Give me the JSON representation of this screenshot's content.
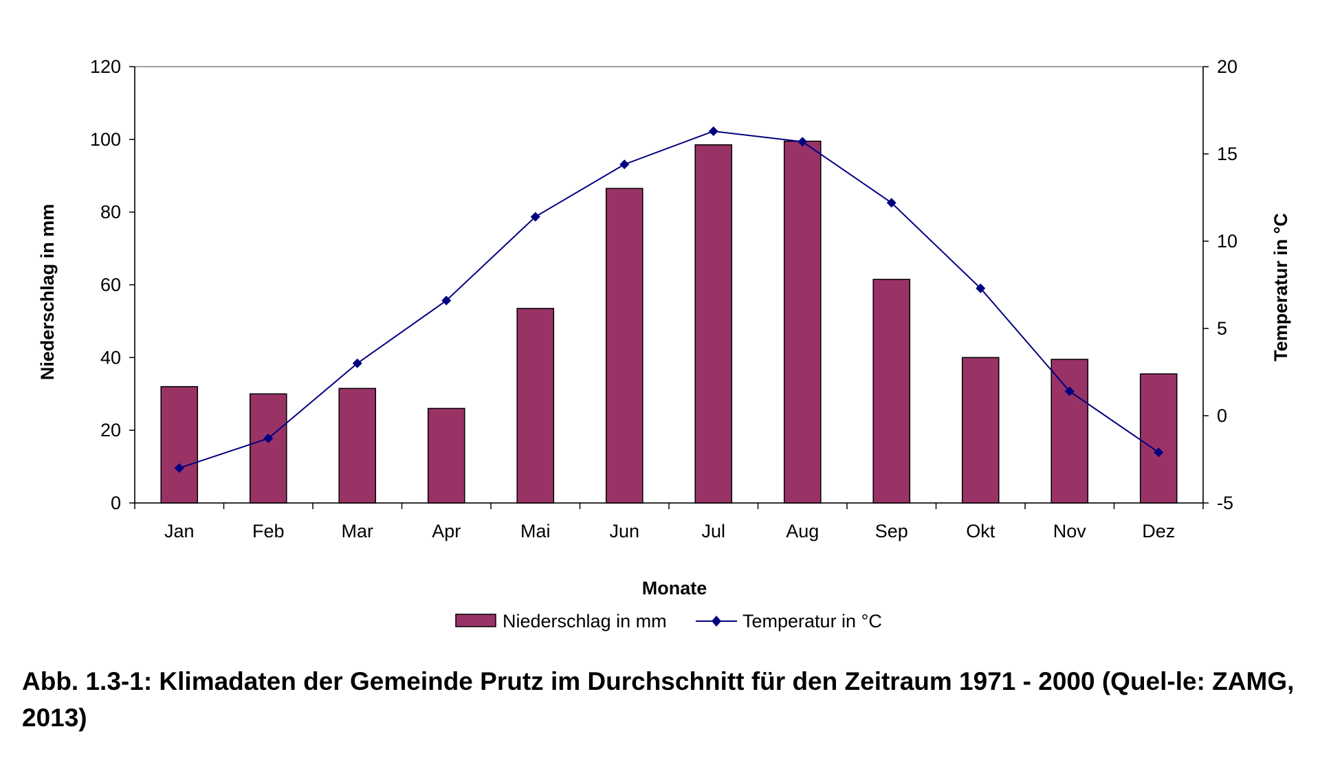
{
  "chart_data": {
    "type": "bar",
    "categories": [
      "Jan",
      "Feb",
      "Mar",
      "Apr",
      "Mai",
      "Jun",
      "Jul",
      "Aug",
      "Sep",
      "Okt",
      "Nov",
      "Dez"
    ],
    "series": [
      {
        "name": "Niederschlag in mm",
        "type": "bar",
        "axis": "left",
        "color": "#993366",
        "values": [
          32,
          30,
          31.5,
          26,
          53.5,
          86.5,
          98.5,
          99.5,
          61.5,
          40,
          39.5,
          35.5
        ]
      },
      {
        "name": "Temperatur in °C",
        "type": "line",
        "axis": "right",
        "color": "#000080",
        "marker": "diamond",
        "values": [
          -3.0,
          -1.3,
          3.0,
          6.6,
          11.4,
          14.4,
          16.3,
          15.7,
          12.2,
          7.3,
          1.4,
          -2.1
        ]
      }
    ],
    "xlabel": "Monate",
    "ylabel": "Niederschlag in mm",
    "y2label": "Temperatur in °C",
    "ylim": [
      0,
      120
    ],
    "yticks": [
      "0",
      "20",
      "40",
      "60",
      "80",
      "100",
      "120"
    ],
    "y2lim": [
      -5,
      20
    ],
    "y2ticks": [
      "-5",
      "0",
      "5",
      "10",
      "15",
      "20"
    ],
    "grid": false,
    "legend": "bottom-center"
  },
  "caption": "Abb. 1.3-1: Klimadaten der Gemeinde Prutz im Durchschnitt für den Zeitraum 1971 - 2000 (Quel-le: ZAMG, 2013)"
}
